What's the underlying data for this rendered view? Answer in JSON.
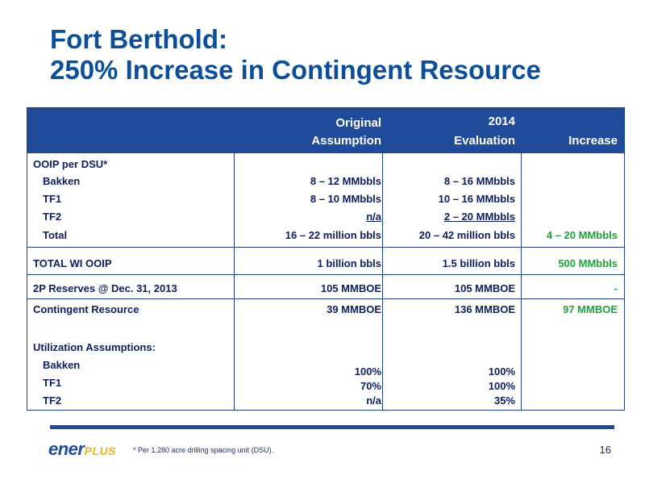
{
  "title": {
    "line1": "Fort Berthold:",
    "line2": "250% Increase in Contingent Resource"
  },
  "table": {
    "headers": {
      "original_line1": "Original",
      "original_line2": "Assumption",
      "evaluation_line1": "2014",
      "evaluation_line2": "Evaluation",
      "increase": "Increase"
    },
    "ooip_section_label": "OOIP per DSU*",
    "ooip_rows": [
      {
        "label": "Bakken",
        "original": "8 – 12 MMbbls",
        "evaluation": "8 – 16 MMbbls",
        "increase": ""
      },
      {
        "label": "TF1",
        "original": "8 – 10 MMbbls",
        "evaluation": "10 – 16 MMbbls",
        "increase": ""
      },
      {
        "label": "TF2",
        "original": "n/a",
        "evaluation": "2 – 20 MMbbls",
        "increase": ""
      },
      {
        "label": "Total",
        "original": "16 – 22 million bbls",
        "evaluation": "20 – 42 million bbls",
        "increase": "4 – 20 MMbbls"
      }
    ],
    "total_wi": {
      "label": "TOTAL WI OOIP",
      "original": "1 billion bbls",
      "evaluation": "1.5 billion bbls",
      "increase": "500 MMbbls"
    },
    "reserves": {
      "label": "2P Reserves @ Dec. 31, 2013",
      "original": "105 MMBOE",
      "evaluation": "105 MMBOE",
      "increase": "-"
    },
    "contingent": {
      "label": "Contingent Resource",
      "original": "39 MMBOE",
      "evaluation": "136 MMBOE",
      "increase": "97 MMBOE"
    },
    "utilization_label": "Utilization Assumptions:",
    "utilization_rows": [
      {
        "label": "Bakken",
        "original": "100%",
        "evaluation": "100%"
      },
      {
        "label": "TF1",
        "original": "70%",
        "evaluation": "100%"
      },
      {
        "label": "TF2",
        "original": "n/a",
        "evaluation": "35%"
      }
    ]
  },
  "footer": {
    "logo_part1": "ener",
    "logo_part2": "PLUS",
    "footnote": "* Per 1,280 acre drilling spacing unit (DSU).",
    "page_number": "16"
  },
  "colors": {
    "title": "#0b4f9a",
    "header_bg": "#1f4b9a",
    "increase_text": "#1aa33b",
    "logo_accent": "#f2b21c"
  }
}
